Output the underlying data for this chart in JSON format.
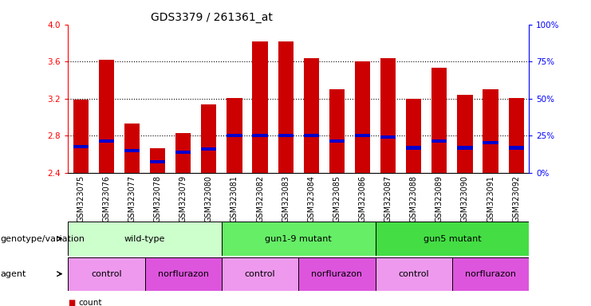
{
  "title": "GDS3379 / 261361_at",
  "samples": [
    "GSM323075",
    "GSM323076",
    "GSM323077",
    "GSM323078",
    "GSM323079",
    "GSM323080",
    "GSM323081",
    "GSM323082",
    "GSM323083",
    "GSM323084",
    "GSM323085",
    "GSM323086",
    "GSM323087",
    "GSM323088",
    "GSM323089",
    "GSM323090",
    "GSM323091",
    "GSM323092"
  ],
  "bar_values": [
    3.19,
    3.62,
    2.93,
    2.67,
    2.83,
    3.14,
    3.21,
    3.82,
    3.82,
    3.64,
    3.3,
    3.6,
    3.64,
    3.2,
    3.53,
    3.24,
    3.3,
    3.21
  ],
  "percentile_values": [
    2.68,
    2.74,
    2.64,
    2.52,
    2.62,
    2.66,
    2.8,
    2.8,
    2.8,
    2.8,
    2.74,
    2.8,
    2.79,
    2.67,
    2.74,
    2.67,
    2.73,
    2.67
  ],
  "ylim": [
    2.4,
    4.0
  ],
  "yticks_left": [
    2.4,
    2.8,
    3.2,
    3.6,
    4.0
  ],
  "yticks_right": [
    0,
    25,
    50,
    75,
    100
  ],
  "bar_color": "#cc0000",
  "percentile_color": "#0000cc",
  "bar_width": 0.6,
  "genotype_groups": [
    {
      "label": "wild-type",
      "start": 0,
      "end": 5,
      "color": "#ccffcc"
    },
    {
      "label": "gun1-9 mutant",
      "start": 6,
      "end": 11,
      "color": "#66ee66"
    },
    {
      "label": "gun5 mutant",
      "start": 12,
      "end": 17,
      "color": "#44dd44"
    }
  ],
  "agent_groups": [
    {
      "label": "control",
      "start": 0,
      "end": 2,
      "color": "#ee99ee"
    },
    {
      "label": "norflurazon",
      "start": 3,
      "end": 5,
      "color": "#dd55dd"
    },
    {
      "label": "control",
      "start": 6,
      "end": 8,
      "color": "#ee99ee"
    },
    {
      "label": "norflurazon",
      "start": 9,
      "end": 11,
      "color": "#dd55dd"
    },
    {
      "label": "control",
      "start": 12,
      "end": 14,
      "color": "#ee99ee"
    },
    {
      "label": "norflurazon",
      "start": 15,
      "end": 17,
      "color": "#dd55dd"
    }
  ],
  "legend_count_color": "#cc0000",
  "legend_percentile_color": "#0000cc",
  "background_color": "#ffffff",
  "title_fontsize": 10,
  "tick_fontsize": 7.5,
  "label_fontsize": 8,
  "bar_label_fontsize": 7
}
